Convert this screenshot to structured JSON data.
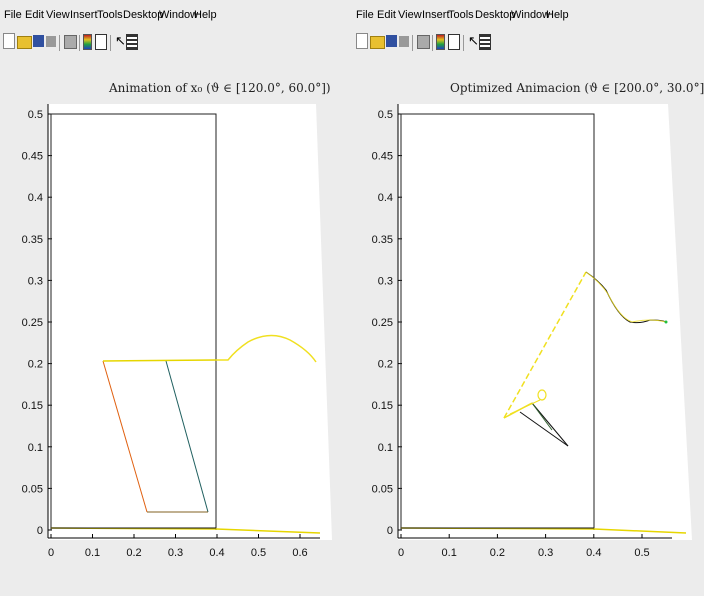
{
  "menu": [
    "File",
    "Edit",
    "View",
    "Insert",
    "Tools",
    "Desktop",
    "Window",
    "Help"
  ],
  "toolbar_icons": [
    "new-file-icon",
    "open-folder-icon",
    "save-icon",
    "print-icon",
    "print-preview-icon",
    "colorbar-icon",
    "legend-icon",
    "pointer-icon",
    "insert-icon"
  ],
  "colors": {
    "yellow": "#f0e020",
    "orange": "#e06010",
    "teal": "#206060",
    "black": "#111111",
    "green": "#20c040"
  },
  "left": {
    "title": "Animation of x₀ (ϑ ∈ [120.0°, 60.0°])",
    "yticks": [
      "0",
      "0.05",
      "0.1",
      "0.15",
      "0.2",
      "0.25",
      "0.3",
      "0.35",
      "0.4",
      "0.45",
      "0.5"
    ],
    "xticks": [
      "0",
      "0.1",
      "0.2",
      "0.3",
      "0.4",
      "0.5",
      "0.6"
    ]
  },
  "right": {
    "title": "Optimized Animacion (ϑ ∈ [200.0°, 30.0°])",
    "yticks": [
      "0",
      "0.05",
      "0.1",
      "0.15",
      "0.2",
      "0.25",
      "0.3",
      "0.35",
      "0.4",
      "0.45",
      "0.5"
    ],
    "xticks": [
      "0",
      "0.1",
      "0.2",
      "0.3",
      "0.4",
      "0.5"
    ]
  }
}
